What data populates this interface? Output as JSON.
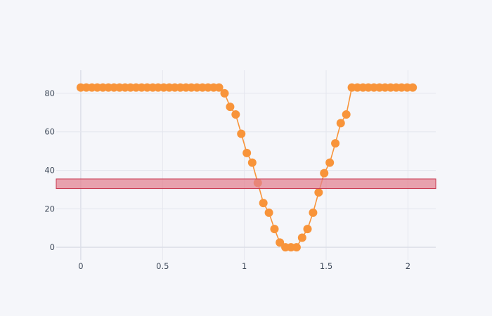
{
  "chart_data": {
    "type": "scatter",
    "title": "",
    "xlabel": "",
    "ylabel": "",
    "xlim": [
      -0.15,
      2.17
    ],
    "ylim": [
      -6.5,
      92
    ],
    "grid": true,
    "legend": "none",
    "x_ticks": [
      0,
      0.5,
      1,
      1.5,
      2
    ],
    "x_tick_labels": [
      "0",
      "0.5",
      "1",
      "1.5",
      "2"
    ],
    "y_ticks": [
      0,
      20,
      40,
      60,
      80
    ],
    "y_tick_labels": [
      "0",
      "20",
      "40",
      "60",
      "80"
    ],
    "band": {
      "y0": 30.5,
      "y1": 35.5,
      "fill": "#e37f8f",
      "stroke": "#c8364e"
    },
    "series": [
      {
        "color": "#f8943a",
        "x": [
          0.0,
          0.034,
          0.068,
          0.101,
          0.135,
          0.169,
          0.203,
          0.237,
          0.271,
          0.304,
          0.338,
          0.372,
          0.406,
          0.44,
          0.473,
          0.507,
          0.541,
          0.575,
          0.609,
          0.643,
          0.676,
          0.71,
          0.744,
          0.778,
          0.812,
          0.845,
          0.879,
          0.913,
          0.947,
          0.981,
          1.015,
          1.048,
          1.082,
          1.116,
          1.15,
          1.184,
          1.217,
          1.251,
          1.285,
          1.319,
          1.353,
          1.386,
          1.42,
          1.454,
          1.488,
          1.522,
          1.556,
          1.589,
          1.623,
          1.657,
          1.691,
          1.725,
          1.758,
          1.792,
          1.826,
          1.86,
          1.894,
          1.928,
          1.961,
          1.995,
          2.029
        ],
        "y": [
          83,
          83,
          83,
          83,
          83,
          83,
          83,
          83,
          83,
          83,
          83,
          83,
          83,
          83,
          83,
          83,
          83,
          83,
          83,
          83,
          83,
          83,
          83,
          83,
          83,
          83,
          80,
          73,
          69,
          59,
          49,
          44,
          33.5,
          23,
          18,
          9.5,
          2.5,
          0,
          0,
          0,
          5,
          9.5,
          18,
          28.5,
          38.5,
          44,
          54,
          64.5,
          69,
          83,
          83,
          83,
          83,
          83,
          83,
          83,
          83,
          83,
          83,
          83,
          83
        ]
      }
    ]
  }
}
